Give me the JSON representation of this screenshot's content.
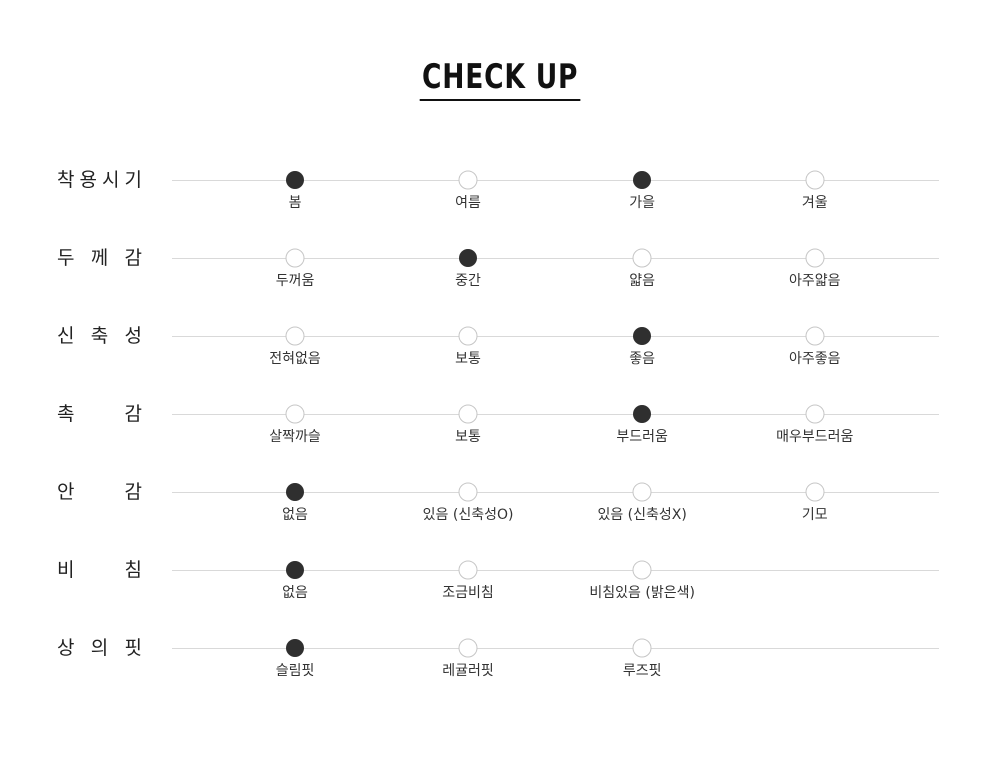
{
  "title": {
    "text": "CHECK UP"
  },
  "colors": {
    "background": "#ffffff",
    "title_text": "#111111",
    "underline": "#111111",
    "filled_dot": "#2f2f2f",
    "empty_dot_border": "#c6c6c6",
    "track_line": "#d9d9d9",
    "row_label_text": "#222222",
    "option_label_text": "#333333"
  },
  "checkup": {
    "rows": [
      {
        "label": "착용시기",
        "options": [
          {
            "label": "봄",
            "selected": true
          },
          {
            "label": "여름",
            "selected": false
          },
          {
            "label": "가을",
            "selected": true
          },
          {
            "label": "겨울",
            "selected": false
          }
        ]
      },
      {
        "label": "두께감",
        "options": [
          {
            "label": "두꺼움",
            "selected": false
          },
          {
            "label": "중간",
            "selected": true
          },
          {
            "label": "얇음",
            "selected": false
          },
          {
            "label": "아주얇음",
            "selected": false
          }
        ]
      },
      {
        "label": "신축성",
        "options": [
          {
            "label": "전혀없음",
            "selected": false
          },
          {
            "label": "보통",
            "selected": false
          },
          {
            "label": "좋음",
            "selected": true
          },
          {
            "label": "아주좋음",
            "selected": false
          }
        ]
      },
      {
        "label": "촉감",
        "options": [
          {
            "label": "살짝까슬",
            "selected": false
          },
          {
            "label": "보통",
            "selected": false
          },
          {
            "label": "부드러움",
            "selected": true
          },
          {
            "label": "매우부드러움",
            "selected": false
          }
        ]
      },
      {
        "label": "안감",
        "options": [
          {
            "label": "없음",
            "selected": true
          },
          {
            "label": "있음 (신축성O)",
            "selected": false
          },
          {
            "label": "있음 (신축성X)",
            "selected": false
          },
          {
            "label": "기모",
            "selected": false
          }
        ]
      },
      {
        "label": "비침",
        "options": [
          {
            "label": "없음",
            "selected": true
          },
          {
            "label": "조금비침",
            "selected": false
          },
          {
            "label": "비침있음 (밝은색)",
            "selected": false
          }
        ]
      },
      {
        "label": "상의핏",
        "options": [
          {
            "label": "슬림핏",
            "selected": true
          },
          {
            "label": "레귤러핏",
            "selected": false
          },
          {
            "label": "루즈핏",
            "selected": false
          }
        ]
      }
    ]
  }
}
